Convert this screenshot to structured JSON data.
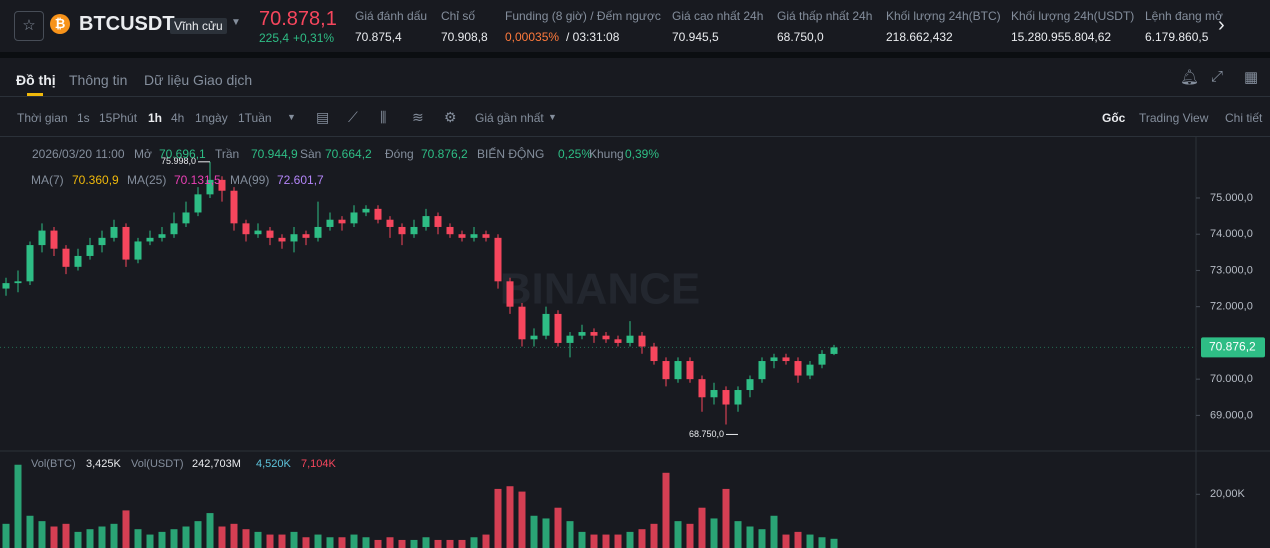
{
  "header": {
    "symbol": "BTCUSDT",
    "contract": "Vĩnh cửu",
    "price": "70.878,1",
    "change": "225,4",
    "change_pct": "+0,31%",
    "stats": [
      {
        "label": "Giá đánh dấu",
        "value": "70.875,4"
      },
      {
        "label": "Chỉ số",
        "value": "70.908,8"
      },
      {
        "label": "Funding (8 giờ) / Đếm ngược",
        "value": "0,00035%",
        "extra": "/ 03:31:08"
      },
      {
        "label": "Giá cao nhất 24h",
        "value": "70.945,5"
      },
      {
        "label": "Giá thấp nhất 24h",
        "value": "68.750,0"
      },
      {
        "label": "Khối lượng 24h(BTC)",
        "value": "218.662,432"
      },
      {
        "label": "Khối lượng 24h(USDT)",
        "value": "15.280.955.804,62"
      },
      {
        "label": "Lệnh đang mở",
        "value": "6.179.860,5"
      }
    ]
  },
  "tabs": [
    "Đồ thị",
    "Thông tin",
    "Dữ liệu Giao dịch"
  ],
  "toolbar": {
    "intervals": [
      "Thời gian",
      "1s",
      "15Phút",
      "1h",
      "4h",
      "1ngày",
      "1Tuần"
    ],
    "price_type": "Giá gần nhất",
    "views": [
      "Gốc",
      "Trading View",
      "Chi tiết"
    ]
  },
  "legend": {
    "date": "2026/03/20 11:00",
    "items": [
      {
        "label": "Mở",
        "value": "70.696,1"
      },
      {
        "label": "Trần",
        "value": "70.944,9"
      },
      {
        "label": "Sàn",
        "value": "70.664,2"
      },
      {
        "label": "Đóng",
        "value": "70.876,2"
      },
      {
        "label": "BIẾN ĐỘNG",
        "value": "0,25%"
      },
      {
        "label": "Khung",
        "value": "0,39%"
      }
    ],
    "ma": [
      {
        "label": "MA(7)",
        "value": "70.360,9",
        "color": "#f0b90b"
      },
      {
        "label": "MA(25)",
        "value": "70.131,5",
        "color": "#eb40b5"
      },
      {
        "label": "MA(99)",
        "value": "72.601,7",
        "color": "#b385f8"
      }
    ],
    "vol": [
      {
        "label": "Vol(BTC)",
        "value": "3,425K"
      },
      {
        "label": "Vol(USDT)",
        "value": "242,703M"
      }
    ],
    "vol_ma": [
      {
        "value": "4,520K",
        "color": "#5ec4dc"
      },
      {
        "value": "7,104K",
        "color": "#f6465d"
      }
    ]
  },
  "watermark": "BINANCE",
  "chart_data": [
    {
      "type": "candlestick",
      "up_color": "#2ebd85",
      "down_color": "#f6465d",
      "open": [
        72500,
        72650,
        72700,
        73700,
        74100,
        73600,
        73100,
        73400,
        73700,
        73900,
        74200,
        73300,
        73800,
        73900,
        74000,
        74300,
        74600,
        75100,
        75500,
        75200,
        74300,
        74000,
        74100,
        73900,
        73800,
        74000,
        73900,
        74200,
        74400,
        74300,
        74600,
        74700,
        74400,
        74200,
        74000,
        74200,
        74500,
        74200,
        74000,
        73900,
        74000,
        73900,
        72700,
        72000,
        71100,
        71200,
        71800,
        71000,
        71200,
        71300,
        71200,
        71100,
        71000,
        71200,
        70900,
        70500,
        70000,
        70500,
        70000,
        69500,
        69700,
        69300,
        69700,
        70000,
        70500,
        70600,
        70500,
        70100,
        70400,
        70696.1
      ],
      "high": [
        72800,
        73000,
        73800,
        74300,
        74200,
        73700,
        73600,
        73900,
        74100,
        74400,
        74300,
        73900,
        74100,
        74200,
        74600,
        74900,
        75300,
        75998,
        75600,
        75300,
        74400,
        74300,
        74200,
        74000,
        74200,
        74100,
        74900,
        74600,
        74500,
        74800,
        74800,
        74800,
        74500,
        74300,
        74400,
        74700,
        74600,
        74300,
        74100,
        74200,
        74100,
        74000,
        72800,
        72100,
        71400,
        72000,
        71900,
        71300,
        71500,
        71400,
        71300,
        71200,
        71600,
        71300,
        71000,
        70600,
        70600,
        70600,
        70100,
        69900,
        69800,
        69800,
        70100,
        70600,
        70700,
        70700,
        70600,
        70500,
        70800,
        70944.9
      ],
      "low": [
        72300,
        72400,
        72600,
        73500,
        73400,
        72900,
        73000,
        73300,
        73500,
        73800,
        73100,
        73200,
        73700,
        73800,
        73900,
        74200,
        74500,
        75000,
        74900,
        74100,
        73800,
        73900,
        73700,
        73600,
        73500,
        73700,
        73800,
        74100,
        74100,
        74200,
        74500,
        74300,
        73900,
        73700,
        73900,
        74100,
        74000,
        73900,
        73800,
        73800,
        73800,
        72500,
        71800,
        70900,
        70900,
        71100,
        70900,
        70600,
        71100,
        71000,
        71000,
        70900,
        70900,
        70700,
        70400,
        69800,
        69900,
        69900,
        69100,
        69300,
        68750,
        69100,
        69500,
        69900,
        70300,
        70400,
        69900,
        70000,
        70300,
        70664.2
      ],
      "close": [
        72650,
        72700,
        73700,
        74100,
        73600,
        73100,
        73400,
        73700,
        73900,
        74200,
        73300,
        73800,
        73900,
        74000,
        74300,
        74600,
        75100,
        75500,
        75200,
        74300,
        74000,
        74100,
        73900,
        73800,
        74000,
        73900,
        74200,
        74400,
        74300,
        74600,
        74700,
        74400,
        74200,
        74000,
        74200,
        74500,
        74200,
        74000,
        73900,
        74000,
        73900,
        72700,
        72000,
        71100,
        71200,
        71800,
        71000,
        71200,
        71300,
        71200,
        71100,
        71000,
        71200,
        70900,
        70500,
        70000,
        70500,
        70000,
        69500,
        69700,
        69300,
        69700,
        70000,
        70500,
        70600,
        70500,
        70100,
        70400,
        70696.1,
        70876.2
      ],
      "ylim": [
        68100,
        76600
      ],
      "yticks": [
        {
          "value": 75000,
          "label": "75.000,0"
        },
        {
          "value": 74000,
          "label": "74.000,0"
        },
        {
          "value": 73000,
          "label": "73.000,0"
        },
        {
          "value": 72000,
          "label": "72.000,0"
        },
        {
          "value": 70000,
          "label": "70.000,0"
        },
        {
          "value": 69000,
          "label": "69.000,0"
        }
      ],
      "last_price": {
        "value": 70876.2,
        "label": "70.876,2"
      },
      "max_label": {
        "value": 75998,
        "label": "75.998,0"
      },
      "min_label": {
        "value": 68750,
        "label": "68.750,0"
      }
    },
    {
      "type": "bar",
      "values": [
        9000,
        31000,
        12000,
        10000,
        8000,
        9000,
        6000,
        7000,
        8000,
        9000,
        14000,
        7000,
        5000,
        6000,
        7000,
        8000,
        10000,
        13000,
        8000,
        9000,
        7000,
        6000,
        5000,
        5000,
        6000,
        4000,
        5000,
        4000,
        4000,
        5000,
        4000,
        3000,
        4000,
        3000,
        3000,
        4000,
        3000,
        3000,
        3000,
        4000,
        5000,
        22000,
        23000,
        21000,
        12000,
        11000,
        15000,
        10000,
        6000,
        5000,
        5000,
        5000,
        6000,
        7000,
        9000,
        28000,
        10000,
        9000,
        15000,
        11000,
        22000,
        10000,
        8000,
        7000,
        12000,
        5000,
        6000,
        5000,
        4000,
        3425
      ],
      "ylim": [
        0,
        35000
      ],
      "yticks": [
        {
          "value": 20000,
          "label": "20,00K"
        }
      ]
    }
  ]
}
